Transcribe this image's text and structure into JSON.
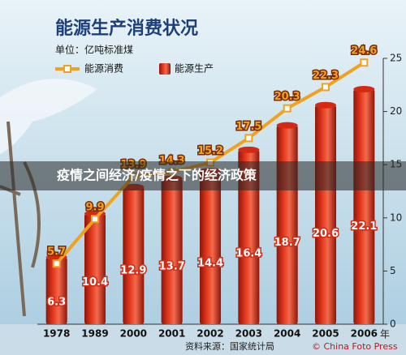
{
  "chart_data": {
    "type": "bar-line",
    "title": "能源生产消费状况",
    "subtitle": "单位：亿吨标准煤",
    "categories": [
      "1978",
      "1989",
      "2000",
      "2001",
      "2002",
      "2003",
      "2004",
      "2005",
      "2006"
    ],
    "x_label": "年",
    "series": [
      {
        "name": "能源消费",
        "type": "line",
        "color": "#f0a21e",
        "values": [
          5.7,
          9.9,
          13.9,
          14.3,
          15.2,
          17.5,
          20.3,
          22.3,
          24.6
        ]
      },
      {
        "name": "能源生产",
        "type": "bar",
        "color": "#d42a14",
        "values": [
          6.3,
          10.4,
          12.9,
          13.7,
          14.4,
          16.4,
          18.7,
          20.6,
          22.1
        ]
      }
    ],
    "ylim": [
      0,
      25
    ],
    "yticks": [
      0,
      5,
      10,
      15,
      20,
      25
    ],
    "grid": false,
    "source": "资料来源：国家统计局",
    "watermark": "© China Foto Press",
    "banner": "疫情之间经济/疫情之下的经济政策"
  }
}
